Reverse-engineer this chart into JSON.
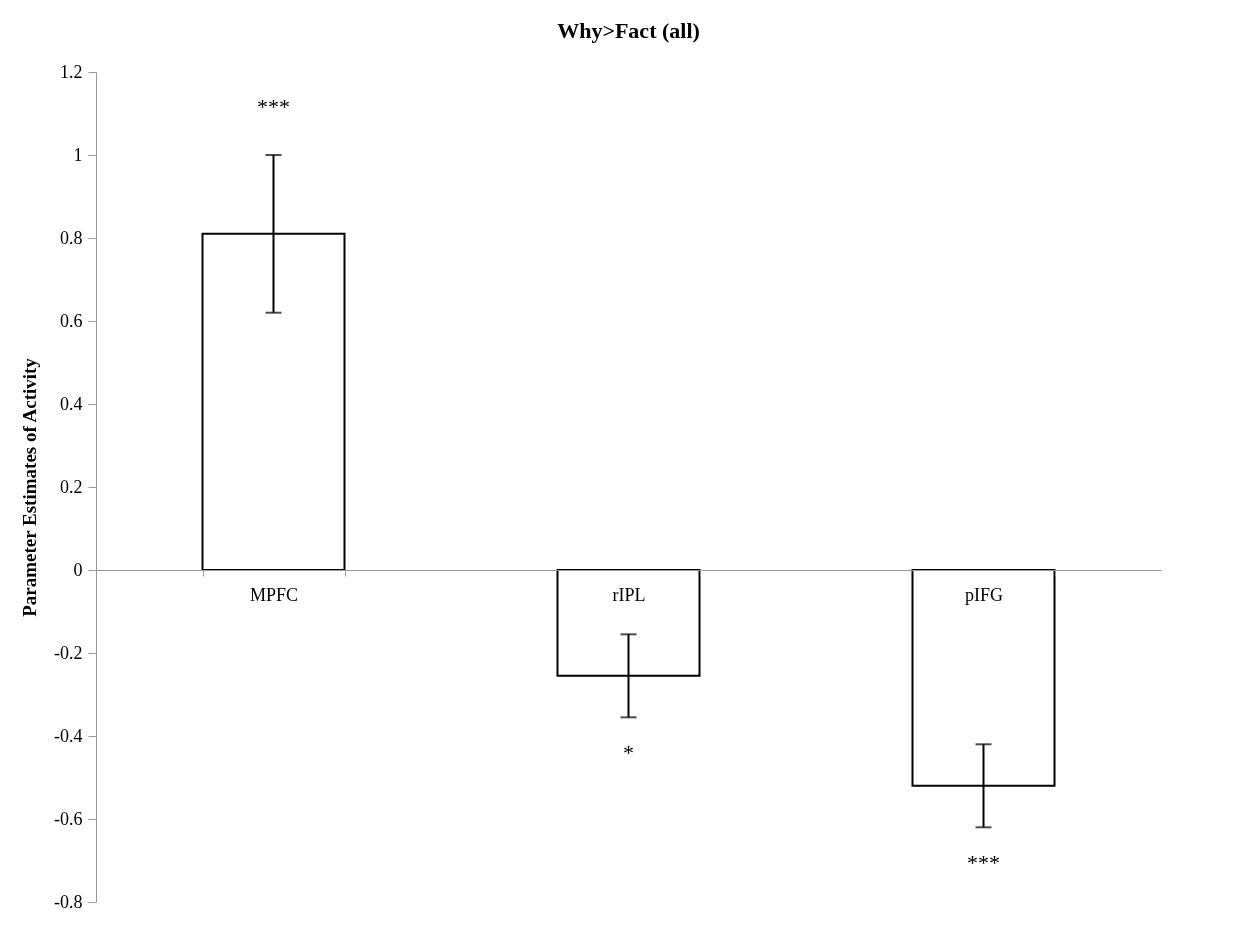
{
  "chart_data": {
    "type": "bar",
    "title": "Why>Fact (all)",
    "ylabel": "Parameter Estimates of Activity",
    "categories": [
      "MPFC",
      "rIPL",
      "pIFG"
    ],
    "values": [
      0.81,
      -0.255,
      -0.52
    ],
    "errors": [
      0.19,
      0.1,
      0.1
    ],
    "color": "#ffffff",
    "ylim": [
      -0.8,
      1.2
    ],
    "yticks": [
      -0.8,
      -0.6,
      -0.4,
      -0.2,
      0,
      0.2,
      0.4,
      0.6,
      0.8,
      1,
      1.2
    ],
    "annotations": [
      "***",
      "*",
      "***"
    ]
  }
}
